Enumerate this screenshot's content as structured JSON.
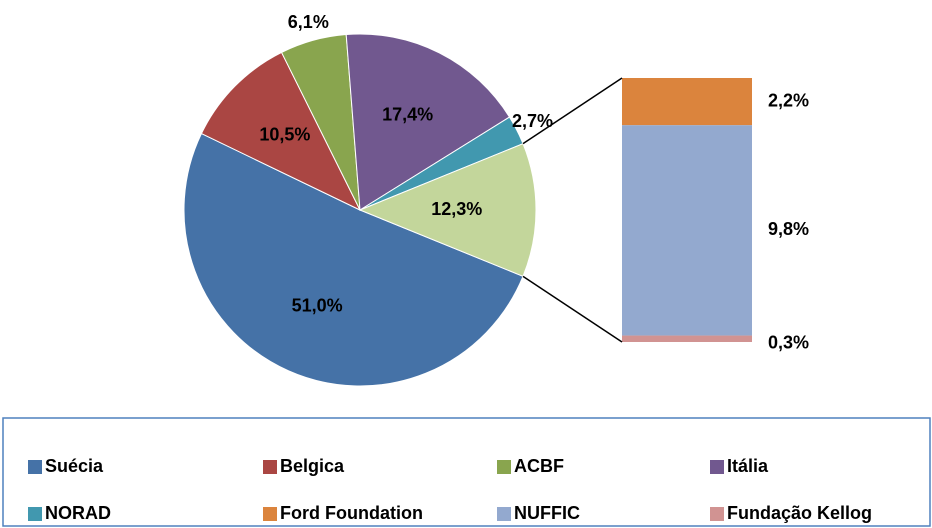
{
  "chart_data": {
    "type": "pie-of-bar",
    "pie": {
      "categories": [
        "Suécia",
        "Belgica",
        "ACBF",
        "Itália",
        "NORAD"
      ],
      "colors": [
        "#4572a7",
        "#aa4643",
        "#89a54e",
        "#71588f",
        "#4198af"
      ],
      "values": [
        51.0,
        10.5,
        6.1,
        17.4,
        2.7
      ],
      "value_labels": [
        "51,0%",
        "10,5%",
        "6,1%",
        "17,4%",
        "2,7%"
      ]
    },
    "other": {
      "value": 12.3,
      "value_label": "12,3%",
      "color": "#c3d69b"
    },
    "bar": {
      "categories": [
        "Ford Foundation",
        "NUFFIC",
        "Fundação Kellog"
      ],
      "colors": [
        "#db843d",
        "#93a9cf",
        "#d19392"
      ],
      "values": [
        2.2,
        9.8,
        0.3
      ],
      "value_labels": [
        "2,2%",
        "9,8%",
        "0,3%"
      ]
    }
  }
}
